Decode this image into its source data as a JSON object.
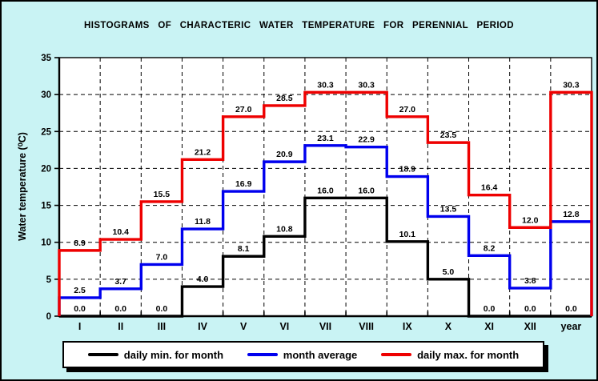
{
  "title": "HISTOGRAMS OF CHARACTERIC WATER TEMPERATURE FOR PERENNIAL PERIOD",
  "colors": {
    "background": "#C9F3F4",
    "plot_background": "#FFFFFF",
    "grid": "#000000",
    "axis": "#000000",
    "daily_min": "#000000",
    "month_average": "#0000EE",
    "daily_max": "#EE0000"
  },
  "chart_data": {
    "type": "line",
    "step": true,
    "title": "HISTOGRAMS OF CHARACTERIC WATER TEMPERATURE FOR PERENNIAL PERIOD",
    "categories": [
      "I",
      "II",
      "III",
      "IV",
      "V",
      "VI",
      "VII",
      "VIII",
      "IX",
      "X",
      "XI",
      "XII",
      "year"
    ],
    "series": [
      {
        "name": "daily min. for month",
        "color": "#000000",
        "values": [
          0.0,
          0.0,
          0.0,
          4.0,
          8.1,
          10.8,
          16.0,
          16.0,
          10.1,
          5.0,
          0.0,
          0.0,
          0.0
        ]
      },
      {
        "name": "month average",
        "color": "#0000EE",
        "values": [
          2.5,
          3.7,
          7.0,
          11.8,
          16.9,
          20.9,
          23.1,
          22.9,
          18.9,
          13.5,
          8.2,
          3.8,
          12.8
        ]
      },
      {
        "name": "daily max. for month",
        "color": "#EE0000",
        "values": [
          8.9,
          10.4,
          15.5,
          21.2,
          27.0,
          28.5,
          30.3,
          30.3,
          27.0,
          23.5,
          16.4,
          12.0,
          30.3
        ]
      }
    ],
    "xlabel": "",
    "ylabel": "Water temperature (⁰C)",
    "yticks": [
      0,
      5,
      10,
      15,
      20,
      25,
      30,
      35
    ],
    "ylim": [
      0,
      35
    ],
    "grid": "dashed",
    "legend_position": "bottom"
  },
  "legend": {
    "items": [
      {
        "label": "daily min. for month",
        "color": "#000000"
      },
      {
        "label": "month average",
        "color": "#0000EE"
      },
      {
        "label": "daily max. for month",
        "color": "#EE0000"
      }
    ]
  }
}
